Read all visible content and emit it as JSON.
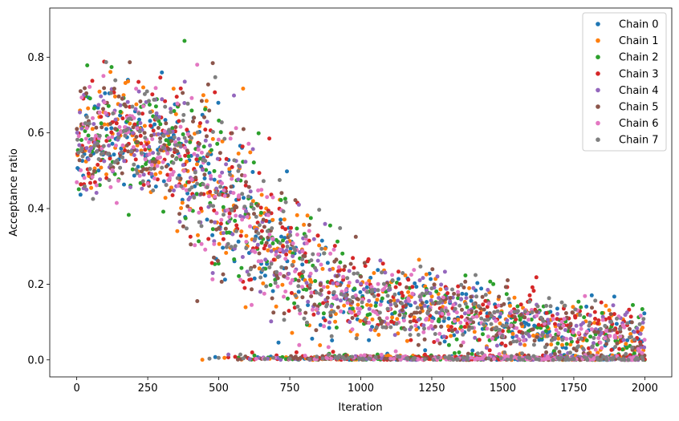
{
  "chart_data": {
    "type": "scatter",
    "title": "",
    "xlabel": "Iteration",
    "ylabel": "Acceptance ratio",
    "xlim": [
      -95,
      2095
    ],
    "ylim": [
      -0.045,
      0.93
    ],
    "xticks": [
      0,
      250,
      500,
      750,
      1000,
      1250,
      1500,
      1750,
      2000
    ],
    "xtick_labels": [
      "0",
      "250",
      "500",
      "750",
      "1000",
      "1250",
      "1500",
      "1750",
      "2000"
    ],
    "yticks": [
      0.0,
      0.2,
      0.4,
      0.6,
      0.8
    ],
    "ytick_labels": [
      "0.0",
      "0.2",
      "0.4",
      "0.6",
      "0.8"
    ],
    "grid": false,
    "legend_position": "top-right",
    "n_iterations": 2000,
    "trend": [
      {
        "x": 0,
        "y": 0.58
      },
      {
        "x": 150,
        "y": 0.6
      },
      {
        "x": 300,
        "y": 0.57
      },
      {
        "x": 450,
        "y": 0.5
      },
      {
        "x": 550,
        "y": 0.42
      },
      {
        "x": 650,
        "y": 0.32
      },
      {
        "x": 750,
        "y": 0.26
      },
      {
        "x": 900,
        "y": 0.19
      },
      {
        "x": 1100,
        "y": 0.15
      },
      {
        "x": 1300,
        "y": 0.13
      },
      {
        "x": 1500,
        "y": 0.1
      },
      {
        "x": 1750,
        "y": 0.075
      },
      {
        "x": 2000,
        "y": 0.055
      }
    ],
    "series": [
      {
        "name": "Chain 0",
        "color": "#1f77b4"
      },
      {
        "name": "Chain 1",
        "color": "#ff7f0e"
      },
      {
        "name": "Chain 2",
        "color": "#2ca02c"
      },
      {
        "name": "Chain 3",
        "color": "#d62728"
      },
      {
        "name": "Chain 4",
        "color": "#9467bd"
      },
      {
        "name": "Chain 5",
        "color": "#8c564b"
      },
      {
        "name": "Chain 6",
        "color": "#e377c2"
      },
      {
        "name": "Chain 7",
        "color": "#7f7f7f"
      }
    ]
  }
}
